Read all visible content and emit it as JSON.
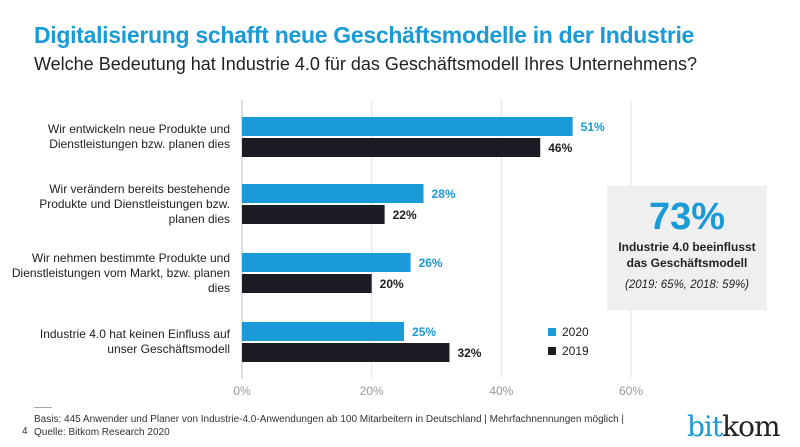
{
  "title": "Digitalisierung schafft neue Geschäftsmodelle in der Industrie",
  "subtitle": "Welche Bedeutung hat Industrie 4.0 für das Geschäftsmodell Ihres Unternehmens?",
  "colors": {
    "s2020": "#1a9ad6",
    "s2019": "#1c1c24"
  },
  "chart_data": {
    "type": "bar",
    "orientation": "horizontal",
    "categories": [
      "Wir entwickeln neue Produkte und Dienstleistungen bzw. planen dies",
      "Wir verändern bereits bestehende Produkte und Dienstleistungen bzw. planen dies",
      "Wir nehmen bestimmte Produkte und Dienstleistungen vom Markt, bzw. planen dies",
      "Industrie 4.0 hat keinen Einfluss auf unser Geschäftsmodell"
    ],
    "series": [
      {
        "name": "2020",
        "values": [
          51,
          28,
          26,
          25
        ]
      },
      {
        "name": "2019",
        "values": [
          46,
          22,
          20,
          32
        ]
      }
    ],
    "data_labels": [
      [
        "51%",
        "28%",
        "26%",
        "25%"
      ],
      [
        "46%",
        "22%",
        "20%",
        "32%"
      ]
    ],
    "xticks": [
      "0%",
      "20%",
      "40%",
      "60%"
    ],
    "xlim": [
      0,
      60
    ],
    "grid": true,
    "legend": "bottom-right"
  },
  "callout": {
    "value": "73%",
    "text1": "Industrie 4.0 beeinflusst",
    "text2": "das Geschäftsmodell",
    "sub": "(2019: 65%, 2018: 59%)"
  },
  "footer": {
    "line1": "Basis: 445 Anwender und Planer von Industrie-4.0-Anwendungen ab 100 Mitarbeitern in Deutschland | Mehrfachnennungen möglich |",
    "line2": "Quelle: Bitkom Research 2020",
    "page": "4"
  },
  "logo": {
    "part1": "bit",
    "part2": "kom"
  }
}
